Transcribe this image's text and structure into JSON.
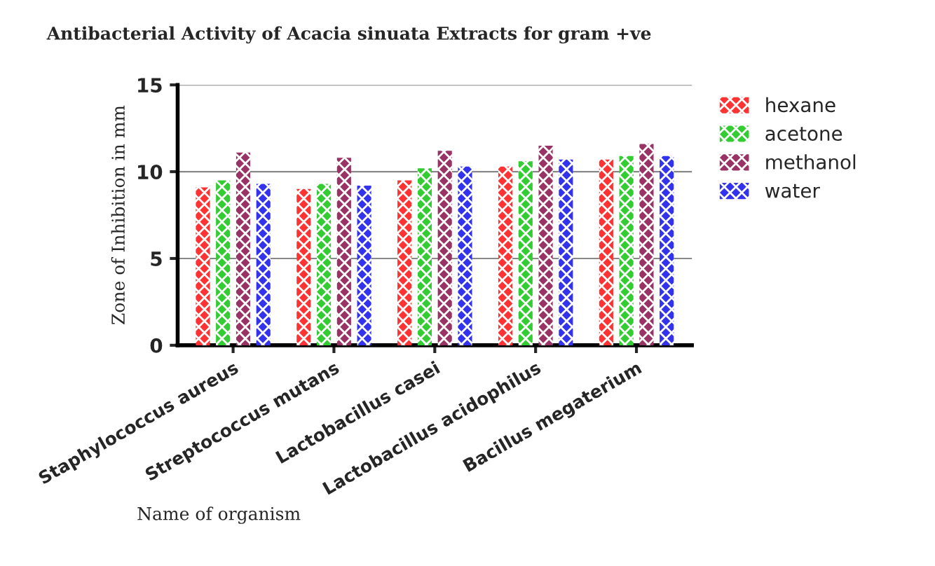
{
  "chart_data": {
    "type": "bar",
    "title": "Antibacterial Activity of Acacia sinuata Extracts for gram +ve",
    "xlabel": "Name of organism",
    "ylabel": "Zone of Inhibition in mm",
    "categories": [
      "Staphylococcus aureus",
      "Streptococcus mutans",
      "Lactobacillus casei",
      "Lactobacillus acidophilus",
      "Bacillus megaterium"
    ],
    "series": [
      {
        "name": "hexane",
        "color": "#ff3333",
        "values": [
          9.1,
          9.0,
          9.5,
          10.3,
          10.7
        ]
      },
      {
        "name": "acetone",
        "color": "#33cc33",
        "values": [
          9.5,
          9.3,
          10.2,
          10.6,
          10.9
        ]
      },
      {
        "name": "methanol",
        "color": "#993366",
        "values": [
          11.1,
          10.8,
          11.2,
          11.5,
          11.6
        ]
      },
      {
        "name": "water",
        "color": "#3333ee",
        "values": [
          9.3,
          9.2,
          10.3,
          10.7,
          10.9
        ]
      }
    ],
    "ylim": [
      0,
      15
    ],
    "yticks": [
      0,
      5,
      10,
      15
    ],
    "grid": "y",
    "legend": "top right"
  }
}
